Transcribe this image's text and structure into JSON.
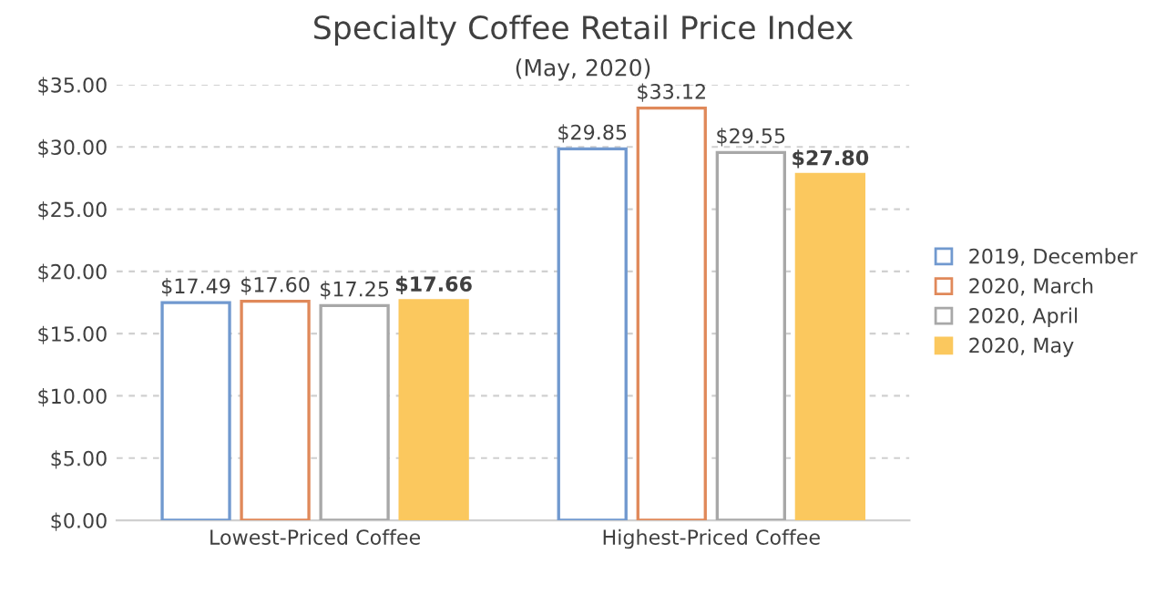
{
  "chart_data": {
    "type": "bar",
    "title": "Specialty Coffee Retail Price Index",
    "subtitle": "(May, 2020)",
    "categories": [
      "Lowest-Priced Coffee",
      "Highest-Priced Coffee"
    ],
    "series": [
      {
        "name": "2019, December",
        "color": "#7199cf",
        "values": [
          17.49,
          29.85
        ],
        "value_labels": [
          "$17.49",
          "$29.85"
        ]
      },
      {
        "name": "2020, March",
        "color": "#e0895a",
        "values": [
          17.6,
          33.12
        ],
        "value_labels": [
          "$17.60",
          "$33.12"
        ]
      },
      {
        "name": "2020, April",
        "color": "#a8a8a8",
        "values": [
          17.25,
          29.55
        ],
        "value_labels": [
          "$17.25",
          "$29.55"
        ]
      },
      {
        "name": "2020, May",
        "color": "#fbc85e",
        "values": [
          17.66,
          27.8
        ],
        "value_labels": [
          "$17.66",
          "$27.80"
        ]
      }
    ],
    "ylim": [
      0,
      35
    ],
    "yticks": [
      {
        "value": 0,
        "label": "$0.00"
      },
      {
        "value": 5,
        "label": "$5.00"
      },
      {
        "value": 10,
        "label": "$10.00"
      },
      {
        "value": 15,
        "label": "$15.00"
      },
      {
        "value": 20,
        "label": "$20.00"
      },
      {
        "value": 25,
        "label": "$25.00"
      },
      {
        "value": 30,
        "label": "$30.00"
      },
      {
        "value": 35,
        "label": "$35.00"
      }
    ],
    "grid": "y",
    "legend": "right"
  }
}
